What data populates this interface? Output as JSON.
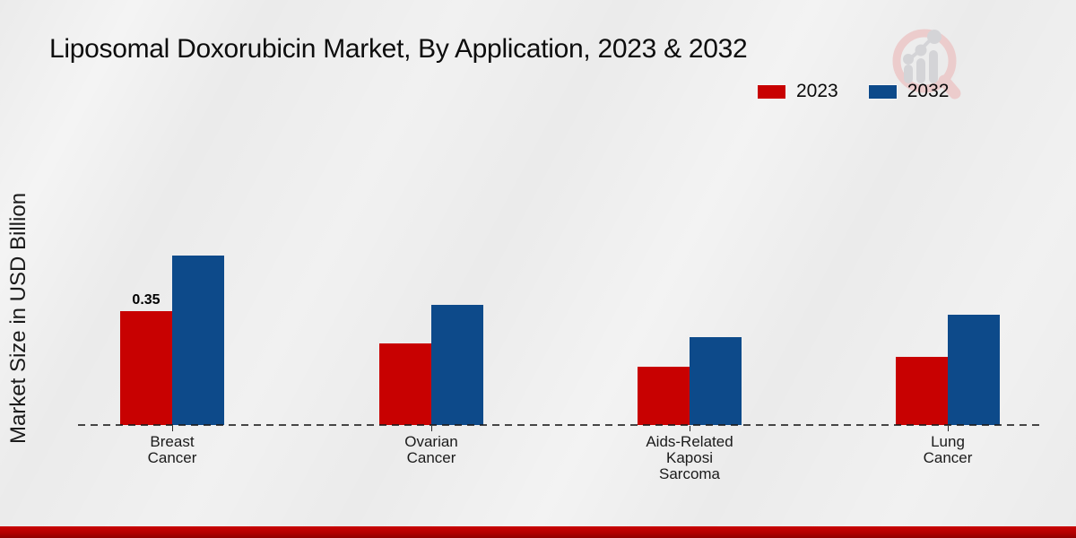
{
  "header": {
    "title": "Liposomal Doxorubicin Market, By Application, 2023 & 2032"
  },
  "y_axis": {
    "label": "Market Size in USD Billion"
  },
  "legend": {
    "items": [
      {
        "label": "2023",
        "color": "#c80101"
      },
      {
        "label": "2032",
        "color": "#0d4a8a"
      }
    ]
  },
  "chart_data": {
    "type": "bar",
    "title": "Liposomal Doxorubicin Market, By Application, 2023 & 2032",
    "xlabel": "",
    "ylabel": "Market Size in USD Billion",
    "categories": [
      "Breast Cancer",
      "Ovarian Cancer",
      "Aids-Related Kaposi Sarcoma",
      "Lung Cancer"
    ],
    "category_label_lines": [
      [
        "Breast",
        "Cancer"
      ],
      [
        "Ovarian",
        "Cancer"
      ],
      [
        "Aids-Related",
        "Kaposi",
        "Sarcoma"
      ],
      [
        "Lung",
        "Cancer"
      ]
    ],
    "series": [
      {
        "name": "2023",
        "color": "#c80101",
        "values": [
          0.35,
          0.25,
          0.18,
          0.21
        ]
      },
      {
        "name": "2032",
        "color": "#0d4a8a",
        "values": [
          0.52,
          0.37,
          0.27,
          0.34
        ]
      }
    ],
    "data_labels": [
      {
        "series_index": 0,
        "category_index": 0,
        "text": "0.35"
      }
    ],
    "ylim": [
      0,
      0.6
    ],
    "grid": false,
    "legend_position": "top-right",
    "baseline_style": "dashed"
  },
  "footer": {
    "accent_color": "#c90404"
  },
  "watermark": {
    "name": "magnifier-bar-chart-logo",
    "ring_color": "#ecc9c9",
    "bars_color": "#d2d2d5"
  }
}
